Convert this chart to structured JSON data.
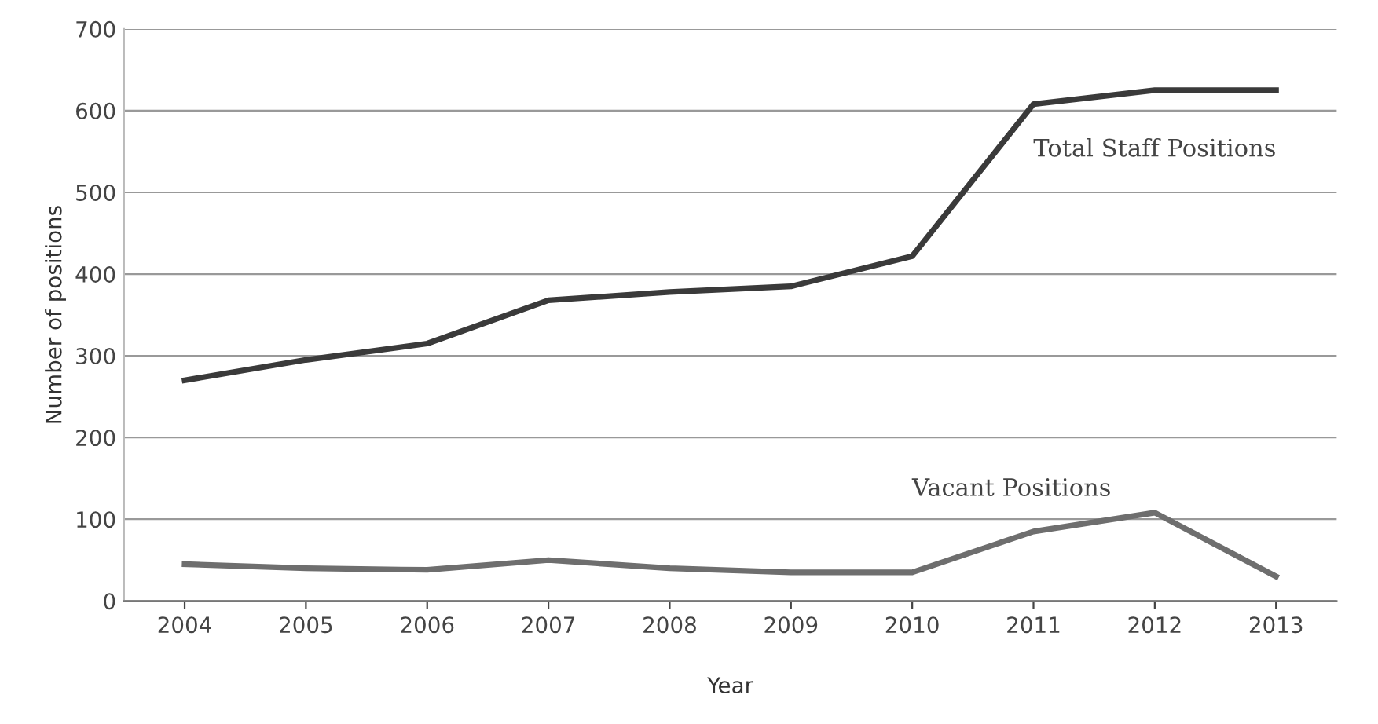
{
  "chart_data": {
    "type": "line",
    "xlabel": "Year",
    "ylabel": "Number of positions",
    "categories": [
      "2004",
      "2005",
      "2006",
      "2007",
      "2008",
      "2009",
      "2010",
      "2011",
      "2012",
      "2013"
    ],
    "series": [
      {
        "name": "Total Staff Positions",
        "color": "#3a3a3a",
        "values": [
          270,
          295,
          315,
          368,
          378,
          385,
          422,
          608,
          625,
          625
        ]
      },
      {
        "name": "Vacant Positions",
        "color": "#6e6e6e",
        "values": [
          45,
          40,
          38,
          50,
          40,
          35,
          35,
          85,
          108,
          30
        ]
      }
    ],
    "ylim": [
      0,
      700
    ],
    "yticks": [
      0,
      100,
      200,
      300,
      400,
      500,
      600,
      700
    ],
    "grid": "y",
    "legend": false,
    "marker": "none",
    "line_style": "solid"
  }
}
